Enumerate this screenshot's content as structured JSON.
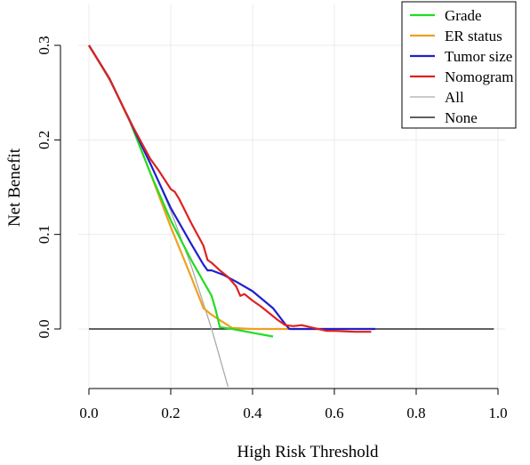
{
  "chart_data": {
    "type": "line",
    "title": "",
    "xlabel": "High Risk Threshold",
    "ylabel": "Net Benefit",
    "xlim": [
      0.0,
      1.0
    ],
    "ylim": [
      -0.065,
      0.33
    ],
    "xticks": [
      "0.0",
      "0.2",
      "0.4",
      "0.6",
      "0.8",
      "1.0"
    ],
    "yticks": [
      "0.0",
      "0.1",
      "0.2",
      "0.3"
    ],
    "grid": true,
    "legend_position": "top-right",
    "series": [
      {
        "name": "Grade",
        "color": "#22dd22",
        "x": [
          0.0,
          0.05,
          0.1,
          0.15,
          0.2,
          0.25,
          0.3,
          0.31,
          0.32,
          0.35,
          0.4,
          0.45
        ],
        "y": [
          0.3,
          0.265,
          0.22,
          0.165,
          0.115,
          0.073,
          0.035,
          0.02,
          0.002,
          0.0,
          -0.004,
          -0.008
        ]
      },
      {
        "name": "ER  status",
        "color": "#f0a020",
        "x": [
          0.0,
          0.05,
          0.1,
          0.15,
          0.2,
          0.25,
          0.28,
          0.3,
          0.35,
          0.4,
          0.45,
          0.5,
          0.55,
          0.6,
          0.65,
          0.7
        ],
        "y": [
          0.3,
          0.265,
          0.22,
          0.165,
          0.108,
          0.055,
          0.022,
          0.015,
          0.001,
          0.0,
          0.0,
          0.0,
          0.0,
          0.0,
          0.0,
          0.0
        ]
      },
      {
        "name": "Tumor size",
        "color": "#2020cc",
        "x": [
          0.0,
          0.05,
          0.1,
          0.15,
          0.2,
          0.25,
          0.28,
          0.29,
          0.3,
          0.33,
          0.36,
          0.4,
          0.45,
          0.48,
          0.49,
          0.55,
          0.6,
          0.65,
          0.7
        ],
        "y": [
          0.3,
          0.265,
          0.22,
          0.175,
          0.128,
          0.09,
          0.068,
          0.062,
          0.062,
          0.057,
          0.05,
          0.04,
          0.022,
          0.005,
          0.0,
          0.0,
          0.0,
          0.0,
          0.0
        ]
      },
      {
        "name": "Nomogram",
        "color": "#dd2222",
        "x": [
          0.0,
          0.05,
          0.1,
          0.15,
          0.17,
          0.2,
          0.21,
          0.22,
          0.25,
          0.28,
          0.29,
          0.3,
          0.32,
          0.34,
          0.36,
          0.37,
          0.38,
          0.4,
          0.42,
          0.44,
          0.46,
          0.48,
          0.5,
          0.52,
          0.55,
          0.58,
          0.6,
          0.65,
          0.69
        ],
        "y": [
          0.3,
          0.265,
          0.22,
          0.18,
          0.168,
          0.148,
          0.145,
          0.138,
          0.112,
          0.088,
          0.073,
          0.07,
          0.062,
          0.055,
          0.045,
          0.035,
          0.037,
          0.03,
          0.024,
          0.017,
          0.01,
          0.004,
          0.003,
          0.004,
          0.001,
          -0.002,
          -0.002,
          -0.003,
          -0.003
        ]
      },
      {
        "name": "All",
        "color": "#aaaaaa",
        "x": [
          0.0,
          0.05,
          0.1,
          0.15,
          0.2,
          0.25,
          0.3,
          0.34
        ],
        "y": [
          0.3,
          0.263,
          0.222,
          0.176,
          0.125,
          0.067,
          0.0,
          -0.061
        ]
      },
      {
        "name": "None",
        "color": "#000000",
        "x": [
          0.0,
          0.99
        ],
        "y": [
          0.0,
          0.0
        ]
      }
    ]
  }
}
